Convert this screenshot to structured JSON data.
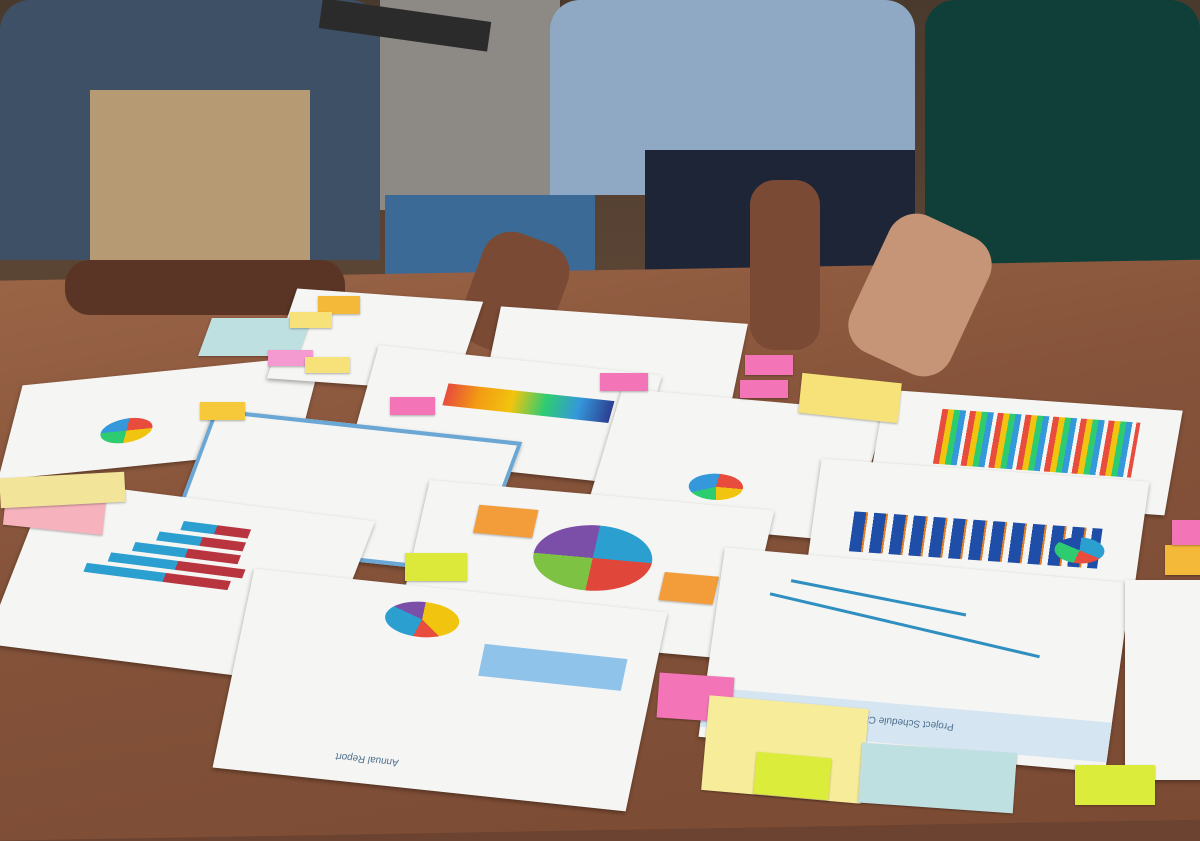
{
  "scene": {
    "description_colors": {
      "table": "#85533a",
      "paper": "#f5f5f3",
      "sticky_pink": "#f4a0c0",
      "sticky_yellow": "#f7e27a",
      "sticky_orange": "#f5b93a",
      "chart_blue": "#2a9fd0",
      "chart_red": "#b8343f"
    }
  },
  "papers": {
    "schedule_title": "Project Schedule Chart",
    "report_title": "Annual Report"
  }
}
